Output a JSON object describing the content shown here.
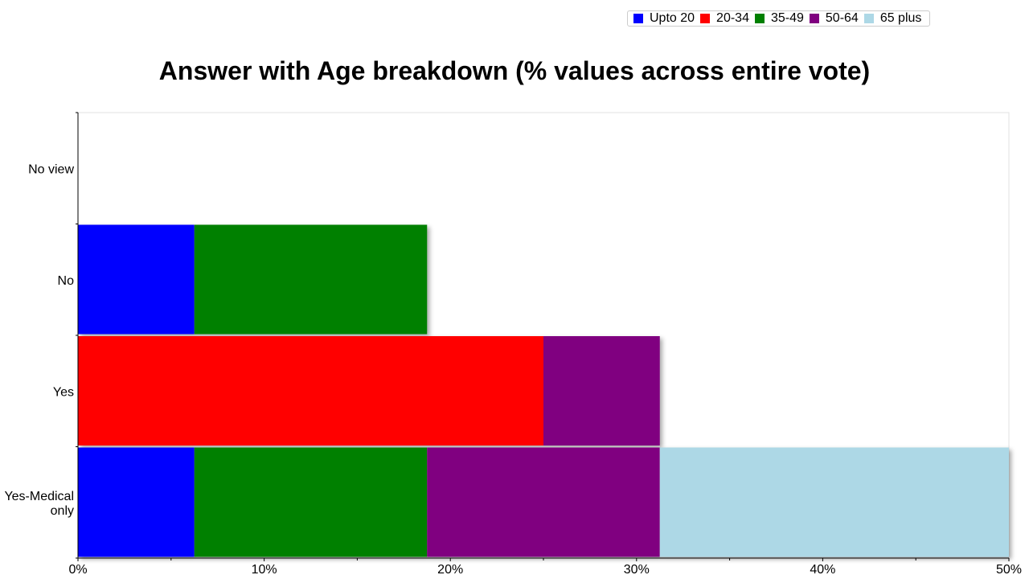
{
  "chart_data": {
    "type": "bar",
    "orientation": "horizontal",
    "stacked": true,
    "title": "Answer with Age breakdown (% values across entire vote)",
    "xlabel": "",
    "ylabel": "",
    "xlim": [
      0,
      50
    ],
    "x_ticks": [
      "0%",
      "10%",
      "20%",
      "30%",
      "40%",
      "50%"
    ],
    "categories": [
      "No view",
      "No",
      "Yes",
      "Yes-Medical only"
    ],
    "series": [
      {
        "name": "Upto 20",
        "color": "#0000ff",
        "values": [
          0,
          6.25,
          0,
          6.25
        ]
      },
      {
        "name": "20-34",
        "color": "#ff0000",
        "values": [
          0,
          0,
          25,
          0
        ]
      },
      {
        "name": "35-49",
        "color": "#008000",
        "values": [
          0,
          12.5,
          0,
          12.5
        ]
      },
      {
        "name": "50-64",
        "color": "#800080",
        "values": [
          0,
          0,
          6.25,
          12.5
        ]
      },
      {
        "name": "65 plus",
        "color": "#add8e6",
        "values": [
          0,
          0,
          0,
          18.75
        ]
      }
    ],
    "legend_position": "top-right",
    "grid": false
  }
}
